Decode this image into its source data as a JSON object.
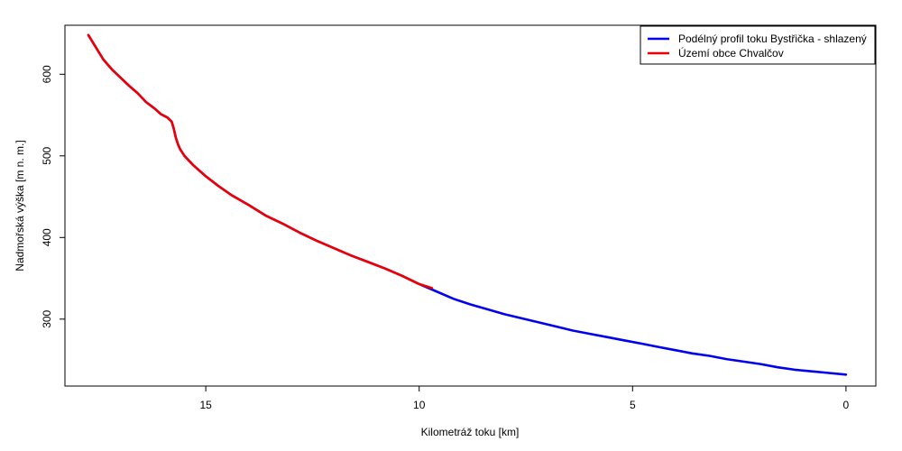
{
  "chart_data": {
    "type": "line",
    "title": "",
    "xlabel": "Kilometráž toku [km]",
    "ylabel": "Nadmořská výška [m n. m.]",
    "xlim": [
      18.3,
      -0.7
    ],
    "ylim": [
      218,
      660
    ],
    "x_reversed": true,
    "x_ticks": [
      15,
      10,
      5,
      0
    ],
    "y_ticks": [
      300,
      400,
      500,
      600
    ],
    "grid": false,
    "legend_position": "top-right",
    "series": [
      {
        "name": "Podélný profil toku Bystřička - shlazený",
        "color": "#0000ee",
        "x": [
          17.75,
          17.6,
          17.4,
          17.2,
          17.0,
          16.8,
          16.6,
          16.4,
          16.2,
          16.05,
          15.9,
          15.8,
          15.75,
          15.7,
          15.65,
          15.6,
          15.5,
          15.3,
          15.0,
          14.7,
          14.4,
          14.0,
          13.6,
          13.2,
          12.8,
          12.4,
          12.0,
          11.6,
          11.2,
          10.8,
          10.4,
          10.0,
          9.6,
          9.2,
          8.8,
          8.4,
          8.0,
          7.6,
          7.2,
          6.8,
          6.4,
          6.0,
          5.6,
          5.2,
          4.8,
          4.4,
          4.0,
          3.6,
          3.2,
          2.8,
          2.4,
          2.0,
          1.6,
          1.2,
          0.8,
          0.4,
          0.0
        ],
        "y": [
          648,
          635,
          618,
          606,
          596,
          586,
          577,
          566,
          558,
          551,
          547,
          542,
          533,
          522,
          514,
          508,
          500,
          489,
          475,
          463,
          452,
          440,
          427,
          417,
          406,
          396,
          387,
          378,
          370,
          362,
          353,
          343,
          334,
          325,
          318,
          312,
          306,
          301,
          296,
          291,
          286,
          282,
          278,
          274,
          270,
          266,
          262,
          258,
          255,
          251,
          248,
          245,
          241,
          238,
          236,
          234,
          232
        ]
      },
      {
        "name": "Území obce Chvalčov",
        "color": "#ee0000",
        "x": [
          17.75,
          17.6,
          17.4,
          17.2,
          17.0,
          16.8,
          16.6,
          16.4,
          16.2,
          16.05,
          15.9,
          15.8,
          15.75,
          15.7,
          15.65,
          15.6,
          15.5,
          15.3,
          15.0,
          14.7,
          14.4,
          14.0,
          13.6,
          13.2,
          12.8,
          12.4,
          12.0,
          11.6,
          11.2,
          10.8,
          10.4,
          10.0,
          9.7
        ],
        "y": [
          648,
          635,
          618,
          606,
          596,
          586,
          577,
          566,
          558,
          551,
          547,
          542,
          533,
          522,
          514,
          508,
          500,
          489,
          475,
          463,
          452,
          440,
          427,
          417,
          406,
          396,
          387,
          378,
          370,
          362,
          353,
          343,
          338
        ]
      }
    ]
  }
}
